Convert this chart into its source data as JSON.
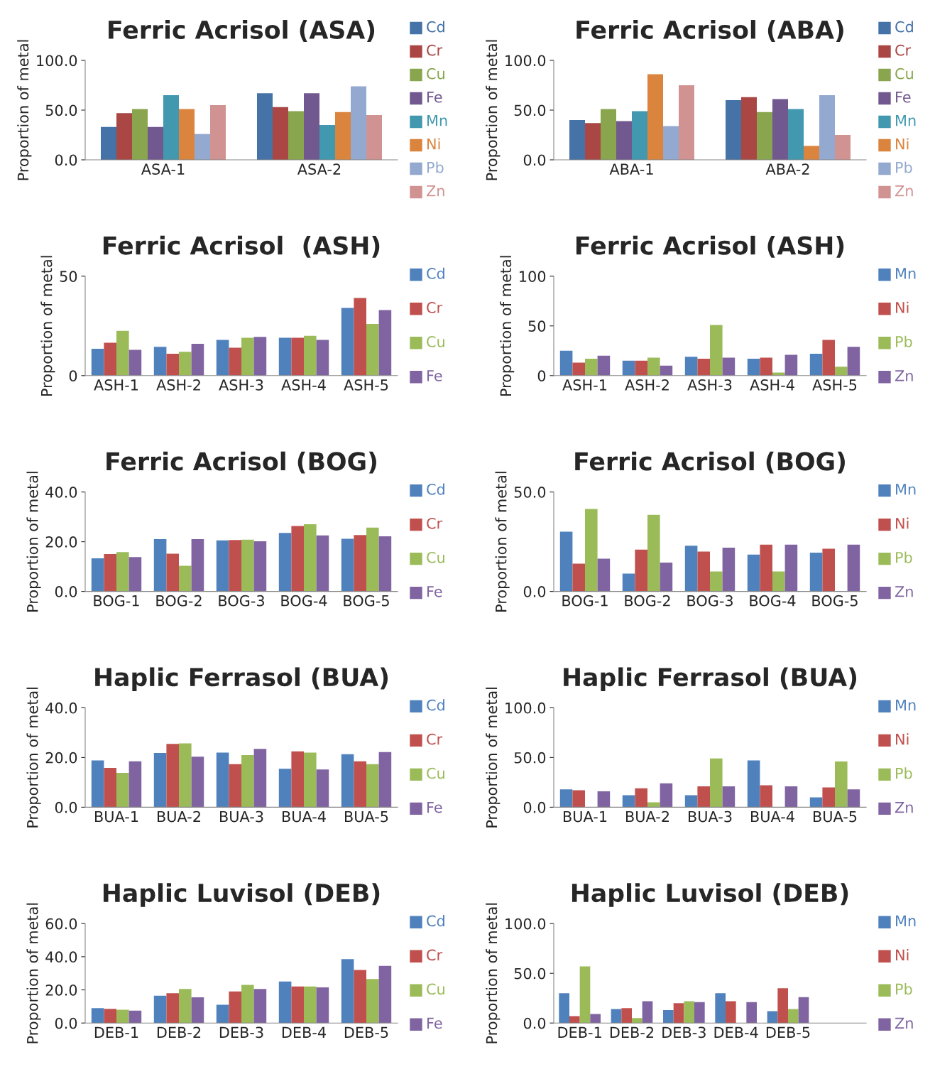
{
  "chart_data": [
    {
      "type": "bar",
      "title": "Ferric Acrisol (ASA)",
      "ylabel": "Proportion of metal",
      "categories": [
        "ASA-1",
        "ASA-2"
      ],
      "ylim": [
        0,
        100
      ],
      "yticks": [
        {
          "value": 0,
          "label": "0.0"
        },
        {
          "value": 50,
          "label": "50.0"
        },
        {
          "value": 100,
          "label": "100.0"
        }
      ],
      "legend": "right",
      "grid": false,
      "series": [
        {
          "name": "Cd",
          "color": "#4572a7",
          "values": [
            33,
            67
          ]
        },
        {
          "name": "Cr",
          "color": "#aa4643",
          "values": [
            47,
            53
          ]
        },
        {
          "name": "Cu",
          "color": "#89a54e",
          "values": [
            51,
            49
          ]
        },
        {
          "name": "Fe",
          "color": "#71588f",
          "values": [
            33,
            67
          ]
        },
        {
          "name": "Mn",
          "color": "#4198af",
          "values": [
            65,
            35
          ]
        },
        {
          "name": "Ni",
          "color": "#db843d",
          "values": [
            51,
            48
          ]
        },
        {
          "name": "Pb",
          "color": "#93a9cf",
          "values": [
            26,
            74
          ]
        },
        {
          "name": "Zn",
          "color": "#d19392",
          "values": [
            55,
            45
          ]
        }
      ]
    },
    {
      "type": "bar",
      "title": "Ferric Acrisol (ABA)",
      "ylabel": "Proportion of metal",
      "categories": [
        "ABA-1",
        "ABA-2"
      ],
      "ylim": [
        0,
        100
      ],
      "yticks": [
        {
          "value": 0,
          "label": "0.0"
        },
        {
          "value": 50,
          "label": "50.0"
        },
        {
          "value": 100,
          "label": "100.0"
        }
      ],
      "legend": "right",
      "grid": false,
      "series": [
        {
          "name": "Cd",
          "color": "#4572a7",
          "values": [
            40,
            60
          ]
        },
        {
          "name": "Cr",
          "color": "#aa4643",
          "values": [
            37,
            63
          ]
        },
        {
          "name": "Cu",
          "color": "#89a54e",
          "values": [
            51,
            48
          ]
        },
        {
          "name": "Fe",
          "color": "#71588f",
          "values": [
            39,
            61
          ]
        },
        {
          "name": "Mn",
          "color": "#4198af",
          "values": [
            49,
            51
          ]
        },
        {
          "name": "Ni",
          "color": "#db843d",
          "values": [
            86,
            14
          ]
        },
        {
          "name": "Pb",
          "color": "#93a9cf",
          "values": [
            34,
            65
          ]
        },
        {
          "name": "Zn",
          "color": "#d19392",
          "values": [
            75,
            25
          ]
        }
      ]
    },
    {
      "type": "bar",
      "title": "Ferric Acrisol  (ASH)",
      "ylabel": "Proportion of metal",
      "categories": [
        "ASH-1",
        "ASH-2",
        "ASH-3",
        "ASH-4",
        "ASH-5"
      ],
      "ylim": [
        0,
        50
      ],
      "yticks": [
        0,
        50
      ],
      "legend": "right",
      "grid": false,
      "series": [
        {
          "name": "Cd",
          "color": "#4f81bd",
          "values": [
            13.5,
            14.5,
            18,
            19,
            34
          ]
        },
        {
          "name": "Cr",
          "color": "#c0504d",
          "values": [
            16.5,
            11,
            14,
            19,
            39
          ]
        },
        {
          "name": "Cu",
          "color": "#9bbb59",
          "values": [
            22.5,
            12,
            19,
            20,
            26
          ]
        },
        {
          "name": "Fe",
          "color": "#8064a2",
          "values": [
            13,
            16,
            19.5,
            18,
            33
          ]
        }
      ]
    },
    {
      "type": "bar",
      "title": "Ferric Acrisol (ASH)",
      "ylabel": "Proportion of metal",
      "categories": [
        "ASH-1",
        "ASH-2",
        "ASH-3",
        "ASH-4",
        "ASH-5"
      ],
      "ylim": [
        0,
        100
      ],
      "yticks": [
        0,
        50,
        100
      ],
      "legend": "right",
      "grid": false,
      "series": [
        {
          "name": "Mn",
          "color": "#4f81bd",
          "values": [
            25,
            15,
            19,
            17,
            22
          ]
        },
        {
          "name": "Ni",
          "color": "#c0504d",
          "values": [
            13,
            15,
            17,
            18,
            36
          ]
        },
        {
          "name": "Pb",
          "color": "#9bbb59",
          "values": [
            17,
            18,
            51,
            3,
            9
          ]
        },
        {
          "name": "Zn",
          "color": "#8064a2",
          "values": [
            20,
            10,
            18,
            21,
            29
          ]
        }
      ]
    },
    {
      "type": "bar",
      "title": "Ferric Acrisol (BOG)",
      "ylabel": "Proportion of metal",
      "categories": [
        "BOG-1",
        "BOG-2",
        "BOG-3",
        "BOG-4",
        "BOG-5"
      ],
      "ylim": [
        0,
        40
      ],
      "yticks": [
        {
          "value": 0,
          "label": "0.0"
        },
        {
          "value": 20,
          "label": "20.0"
        },
        {
          "value": 40,
          "label": "40.0"
        }
      ],
      "legend": "right",
      "grid": false,
      "series": [
        {
          "name": "Cd",
          "color": "#4f81bd",
          "values": [
            13.3,
            21,
            20.5,
            23.5,
            21.2
          ]
        },
        {
          "name": "Cr",
          "color": "#c0504d",
          "values": [
            15,
            15.2,
            20.7,
            26.3,
            22.7
          ]
        },
        {
          "name": "Cu",
          "color": "#9bbb59",
          "values": [
            15.8,
            10.3,
            20.8,
            27,
            25.7
          ]
        },
        {
          "name": "Fe",
          "color": "#8064a2",
          "values": [
            13.8,
            21,
            20.2,
            22.5,
            22.2
          ]
        }
      ]
    },
    {
      "type": "bar",
      "title": "Ferric Acrisol (BOG)",
      "ylabel": "Proportion of metal",
      "categories": [
        "BOG-1",
        "BOG-2",
        "BOG-3",
        "BOG-4",
        "BOG-5"
      ],
      "ylim": [
        0,
        50
      ],
      "yticks": [
        {
          "value": 0,
          "label": "0.0"
        },
        {
          "value": 50,
          "label": "50.0"
        }
      ],
      "legend": "right",
      "grid": false,
      "series": [
        {
          "name": "Mn",
          "color": "#4f81bd",
          "values": [
            30,
            9,
            23,
            18.5,
            19.5
          ]
        },
        {
          "name": "Ni",
          "color": "#c0504d",
          "values": [
            14,
            21,
            20,
            23.5,
            21.5
          ]
        },
        {
          "name": "Pb",
          "color": "#9bbb59",
          "values": [
            41.5,
            38.5,
            10,
            10,
            null
          ]
        },
        {
          "name": "Zn",
          "color": "#8064a2",
          "values": [
            16.5,
            14.5,
            22,
            23.5,
            23.5
          ]
        }
      ]
    },
    {
      "type": "bar",
      "title": "Haplic Ferrasol (BUA)",
      "ylabel": "Proportion of metal",
      "categories": [
        "BUA-1",
        "BUA-2",
        "BUA-3",
        "BUA-4",
        "BUA-5"
      ],
      "ylim": [
        0,
        40
      ],
      "yticks": [
        {
          "value": 0,
          "label": "0.0"
        },
        {
          "value": 20,
          "label": "20.0"
        },
        {
          "value": 40,
          "label": "40.0"
        }
      ],
      "legend": "right",
      "grid": false,
      "series": [
        {
          "name": "Cd",
          "color": "#4f81bd",
          "values": [
            18.8,
            21.8,
            22,
            15.5,
            21.3
          ]
        },
        {
          "name": "Cr",
          "color": "#c0504d",
          "values": [
            15.8,
            25.5,
            17.3,
            22.5,
            18.5
          ]
        },
        {
          "name": "Cu",
          "color": "#9bbb59",
          "values": [
            13.8,
            25.7,
            21,
            22,
            17.3
          ]
        },
        {
          "name": "Fe",
          "color": "#8064a2",
          "values": [
            18.5,
            20.3,
            23.5,
            15.2,
            22.2
          ]
        }
      ]
    },
    {
      "type": "bar",
      "title": "Haplic Ferrasol (BUA)",
      "ylabel": "Proportion of metal",
      "categories": [
        "BUA-1",
        "BUA-2",
        "BUA-3",
        "BUA-4",
        "BUA-5"
      ],
      "ylim": [
        0,
        100
      ],
      "yticks": [
        {
          "value": 0,
          "label": "0.0"
        },
        {
          "value": 50,
          "label": "50.0"
        },
        {
          "value": 100,
          "label": "100.0"
        }
      ],
      "legend": "right",
      "grid": false,
      "series": [
        {
          "name": "Mn",
          "color": "#4f81bd",
          "values": [
            18,
            12,
            12,
            47,
            10
          ]
        },
        {
          "name": "Ni",
          "color": "#c0504d",
          "values": [
            17,
            19,
            21,
            22,
            20
          ]
        },
        {
          "name": "Pb",
          "color": "#9bbb59",
          "values": [
            null,
            5,
            49,
            null,
            46
          ]
        },
        {
          "name": "Zn",
          "color": "#8064a2",
          "values": [
            16,
            24,
            21,
            21,
            18
          ]
        }
      ]
    },
    {
      "type": "bar",
      "title": "Haplic Luvisol (DEB)",
      "ylabel": "Proportion of metal",
      "categories": [
        "DEB-1",
        "DEB-2",
        "DEB-3",
        "DEB-4",
        "DEB-5"
      ],
      "ylim": [
        0,
        60
      ],
      "yticks": [
        {
          "value": 0,
          "label": "0.0"
        },
        {
          "value": 20,
          "label": "20.0"
        },
        {
          "value": 40,
          "label": "40.0"
        },
        {
          "value": 60,
          "label": "60.0"
        }
      ],
      "legend": "right",
      "grid": false,
      "series": [
        {
          "name": "Cd",
          "color": "#4f81bd",
          "values": [
            9,
            16.5,
            11,
            25,
            38.5
          ]
        },
        {
          "name": "Cr",
          "color": "#c0504d",
          "values": [
            8.5,
            18,
            19,
            22,
            32
          ]
        },
        {
          "name": "Cu",
          "color": "#9bbb59",
          "values": [
            8,
            20.5,
            23,
            22,
            26.5
          ]
        },
        {
          "name": "Fe",
          "color": "#8064a2",
          "values": [
            7.5,
            15.5,
            20.5,
            21.5,
            34.5
          ]
        }
      ]
    },
    {
      "type": "bar",
      "title": "Haplic Luvisol (DEB)",
      "ylabel": "Proportion of metal",
      "categories": [
        "DEB-1",
        "DEB-2",
        "DEB-3",
        "DEB-4",
        "DEB-5",
        null
      ],
      "ylim": [
        0,
        100
      ],
      "yticks": [
        {
          "value": 0,
          "label": "0.0"
        },
        {
          "value": 50,
          "label": "50.0"
        },
        {
          "value": 100,
          "label": "100.0"
        }
      ],
      "legend": "right",
      "grid": false,
      "series": [
        {
          "name": "Mn",
          "color": "#4f81bd",
          "values": [
            30,
            14,
            13,
            30,
            12,
            null
          ]
        },
        {
          "name": "Ni",
          "color": "#c0504d",
          "values": [
            7,
            15,
            20,
            22,
            35,
            null
          ]
        },
        {
          "name": "Pb",
          "color": "#9bbb59",
          "values": [
            57,
            5,
            22,
            null,
            14,
            null
          ]
        },
        {
          "name": "Zn",
          "color": "#8064a2",
          "values": [
            9,
            22,
            21,
            21,
            26,
            null
          ]
        }
      ]
    }
  ]
}
